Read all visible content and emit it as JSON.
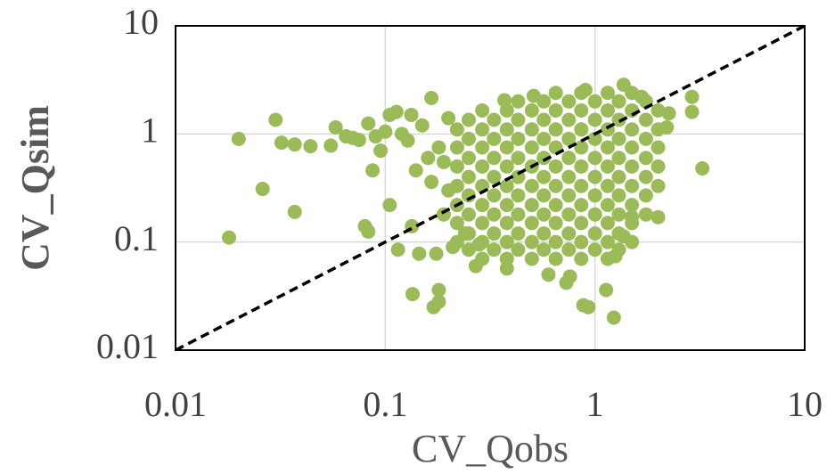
{
  "chart_data": {
    "type": "scatter",
    "x_label": "CV_Qobs",
    "y_label": "CV_Qsim",
    "log_scale": true,
    "grid": true,
    "identity_line": true,
    "color": "#9bbb59",
    "xlim": [
      0.01,
      10
    ],
    "ylim": [
      0.01,
      10
    ],
    "xticks": [
      0.01,
      0.1,
      1,
      10
    ],
    "yticks": [
      0.01,
      0.1,
      1,
      10
    ],
    "x": [
      0.018,
      0.02,
      0.026,
      0.03,
      0.032,
      0.037,
      0.037,
      0.044,
      0.058,
      0.055,
      0.08,
      0.083,
      0.083,
      0.087,
      0.105,
      0.115,
      0.135,
      0.166,
      0.17,
      0.18,
      0.134,
      0.6,
      0.73,
      0.88,
      0.93,
      1.23,
      1.25,
      3.25,
      2.9,
      2.9,
      2.25,
      2.2,
      1.67,
      1.37,
      0.9,
      0.37,
      0.51,
      0.105,
      0.113,
      0.133,
      0.128,
      0.14,
      0.166,
      0.145,
      0.175,
      0.18,
      0.27,
      0.38,
      0.76,
      1.13,
      1.37,
      1.5,
      2.0,
      1.5,
      0.24,
      0.28,
      0.065,
      0.07,
      0.075,
      0.09,
      0.095,
      0.1,
      0.12,
      0.15,
      0.16,
      0.18,
      0.19,
      0.2,
      0.2,
      0.19,
      0.21,
      0.22,
      0.22,
      0.22,
      0.22,
      0.22,
      0.22,
      0.22,
      0.25,
      0.25,
      0.25,
      0.25,
      0.25,
      0.25,
      0.25,
      0.25,
      0.29,
      0.29,
      0.29,
      0.29,
      0.29,
      0.29,
      0.29,
      0.29,
      0.29,
      0.33,
      0.33,
      0.33,
      0.33,
      0.33,
      0.33,
      0.33,
      0.33,
      0.38,
      0.38,
      0.38,
      0.38,
      0.38,
      0.38,
      0.38,
      0.38,
      0.38,
      0.43,
      0.43,
      0.43,
      0.43,
      0.43,
      0.43,
      0.43,
      0.43,
      0.43,
      0.5,
      0.5,
      0.5,
      0.5,
      0.5,
      0.5,
      0.5,
      0.5,
      0.5,
      0.57,
      0.57,
      0.57,
      0.57,
      0.57,
      0.57,
      0.57,
      0.57,
      0.57,
      0.65,
      0.65,
      0.65,
      0.65,
      0.65,
      0.65,
      0.65,
      0.65,
      0.65,
      0.65,
      0.75,
      0.75,
      0.75,
      0.75,
      0.75,
      0.75,
      0.75,
      0.75,
      0.75,
      0.86,
      0.86,
      0.86,
      0.86,
      0.86,
      0.86,
      0.86,
      0.86,
      0.86,
      0.86,
      1.0,
      1.0,
      1.0,
      1.0,
      1.0,
      1.0,
      1.0,
      1.0,
      1.0,
      1.15,
      1.15,
      1.15,
      1.15,
      1.15,
      1.15,
      1.15,
      1.15,
      1.15,
      1.15,
      1.3,
      1.3,
      1.3,
      1.3,
      1.3,
      1.3,
      1.3,
      1.3,
      1.3,
      1.5,
      1.5,
      1.5,
      1.5,
      1.5,
      1.5,
      1.5,
      1.5,
      1.75,
      1.75,
      1.75,
      1.75,
      1.75,
      1.75,
      1.75,
      2.0,
      2.0,
      2.0,
      2.0,
      2.0
    ],
    "values": [
      0.11,
      0.9,
      0.31,
      1.35,
      0.83,
      0.8,
      0.19,
      0.77,
      1.15,
      0.78,
      0.14,
      0.125,
      1.25,
      0.46,
      0.22,
      0.085,
      0.033,
      2.15,
      0.025,
      0.028,
      0.14,
      0.05,
      0.042,
      0.026,
      0.025,
      0.02,
      0.074,
      0.48,
      2.2,
      1.6,
      1.55,
      1.15,
      2.2,
      2.85,
      2.55,
      2.05,
      2.25,
      1.5,
      1.6,
      1.5,
      0.87,
      0.46,
      0.36,
      0.078,
      0.078,
      0.036,
      0.06,
      0.057,
      0.048,
      0.036,
      0.113,
      0.17,
      0.17,
      0.1,
      0.12,
      0.095,
      0.95,
      0.92,
      0.88,
      0.95,
      0.7,
      1.05,
      1.0,
      1.2,
      0.6,
      0.75,
      0.55,
      1.4,
      0.3,
      0.18,
      0.09,
      0.1,
      0.15,
      0.22,
      0.33,
      0.5,
      0.75,
      1.1,
      0.085,
      0.12,
      0.18,
      0.27,
      0.4,
      0.6,
      0.9,
      1.35,
      0.07,
      0.1,
      0.15,
      0.22,
      0.33,
      0.5,
      0.75,
      1.1,
      1.65,
      0.085,
      0.12,
      0.18,
      0.27,
      0.4,
      0.6,
      0.9,
      1.35,
      0.07,
      0.1,
      0.15,
      0.22,
      0.33,
      0.5,
      0.75,
      1.1,
      1.65,
      0.085,
      0.12,
      0.18,
      0.27,
      0.4,
      0.6,
      0.9,
      1.35,
      2.0,
      0.07,
      0.1,
      0.15,
      0.22,
      0.33,
      0.5,
      0.75,
      1.1,
      1.65,
      0.085,
      0.12,
      0.18,
      0.27,
      0.4,
      0.6,
      0.9,
      1.35,
      2.0,
      0.07,
      0.1,
      0.15,
      0.22,
      0.33,
      0.5,
      0.75,
      1.1,
      1.65,
      2.4,
      0.085,
      0.12,
      0.18,
      0.27,
      0.4,
      0.6,
      0.9,
      1.35,
      2.0,
      0.07,
      0.1,
      0.15,
      0.22,
      0.33,
      0.5,
      0.75,
      1.1,
      1.65,
      2.4,
      0.085,
      0.12,
      0.18,
      0.27,
      0.4,
      0.6,
      0.9,
      1.35,
      2.0,
      0.07,
      0.1,
      0.15,
      0.22,
      0.33,
      0.5,
      0.75,
      1.1,
      1.65,
      2.4,
      0.085,
      0.12,
      0.18,
      0.27,
      0.4,
      0.6,
      0.9,
      1.35,
      2.0,
      0.15,
      0.22,
      0.33,
      0.5,
      0.75,
      1.1,
      1.65,
      2.4,
      0.18,
      0.27,
      0.4,
      0.6,
      0.9,
      1.35,
      2.0,
      0.33,
      0.5,
      0.75,
      1.1,
      1.65
    ]
  }
}
